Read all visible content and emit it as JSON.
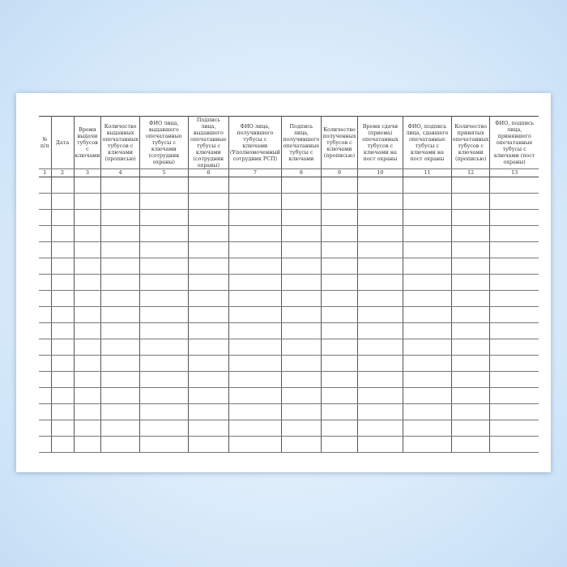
{
  "columns": [
    {
      "header": "№ п/п",
      "num": "1"
    },
    {
      "header": "Дата",
      "num": "2"
    },
    {
      "header": "Время выдачи тубусов с ключами",
      "num": "3"
    },
    {
      "header": "Количество выданных опечатанных тубусов с ключами (прописью)",
      "num": "4"
    },
    {
      "header": "ФИО лица, выдавшего опечатанные тубусы с ключами (сотрудник охраны)",
      "num": "5"
    },
    {
      "header": "Подпись лица, выдавшего опечатанные тубусы с ключами (сотрудник охраны)",
      "num": "6"
    },
    {
      "header": "ФИО лица, получившего тубусы с ключами (Уполномоченный сотрудник РСП)",
      "num": "7"
    },
    {
      "header": "Подпись лица, получившего опечатанные тубусы с ключами",
      "num": "8"
    },
    {
      "header": "Количество полученных тубусов с ключами (прописью)",
      "num": "9"
    },
    {
      "header": "Время сдачи (приема) опечатанных тубусов с ключами на пост охраны",
      "num": "10"
    },
    {
      "header": "ФИО, подпись лица, сдавшего опечатанные тубусы с ключами на пост охраны",
      "num": "11"
    },
    {
      "header": "Количество принятых опечатанных тубусов с ключами (прописью)",
      "num": "12"
    },
    {
      "header": "ФИО, подпись лица, принявшего опечатанные тубусы с ключами (пост охраны)",
      "num": "13"
    }
  ],
  "empty_rows": 17
}
